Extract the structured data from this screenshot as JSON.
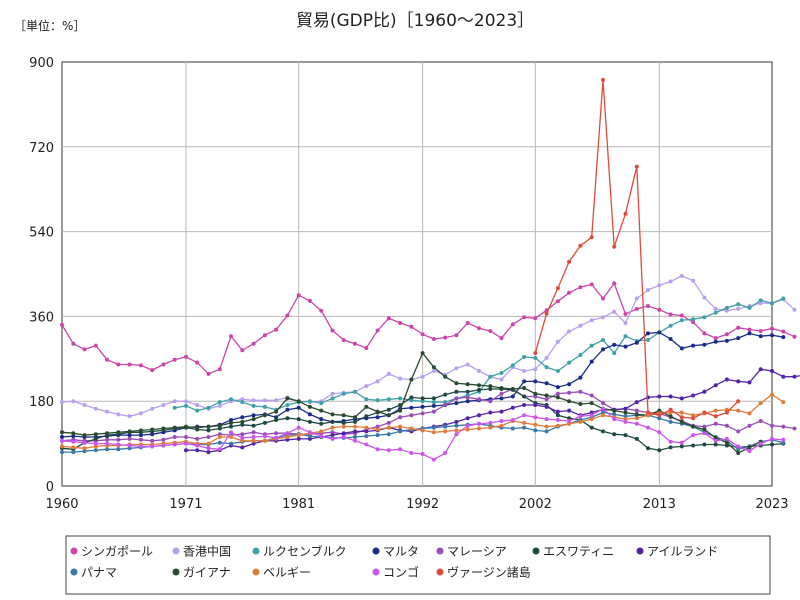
{
  "chart_data": {
    "type": "line",
    "title": "貿易(GDP比)［1960～2023］",
    "unit_label": "［単位：%］",
    "xlabel": "",
    "ylabel": "",
    "xlim": [
      1960,
      2023
    ],
    "ylim": [
      0,
      900
    ],
    "x_ticks": [
      1960,
      1971,
      1981,
      1992,
      2002,
      2013,
      2023
    ],
    "y_ticks": [
      0,
      180,
      360,
      540,
      720,
      900
    ],
    "grid": true,
    "legend_position": "bottom",
    "series": [
      {
        "name": "シンガポール",
        "color": "#cc44aa",
        "start": 1960,
        "values": [
          342,
          302,
          290,
          298,
          268,
          258,
          258,
          256,
          246,
          258,
          268,
          274,
          262,
          238,
          248,
          318,
          288,
          302,
          320,
          332,
          362,
          405,
          393,
          372,
          330,
          310,
          302,
          293,
          330,
          356,
          346,
          338,
          322,
          312,
          315,
          320,
          346,
          335,
          329,
          314,
          343,
          358,
          356,
          373,
          392,
          410,
          422,
          428,
          398,
          430,
          365,
          376,
          382,
          374,
          364,
          362,
          348,
          324,
          314,
          322,
          336,
          332,
          329,
          334,
          328,
          317
        ]
      },
      {
        "name": "香港中国",
        "color": "#b8a0ee",
        "start": 1960,
        "values": [
          178,
          180,
          172,
          164,
          158,
          152,
          148,
          154,
          164,
          172,
          180,
          180,
          172,
          164,
          170,
          180,
          184,
          182,
          182,
          182,
          188,
          180,
          178,
          180,
          196,
          198,
          200,
          212,
          222,
          238,
          228,
          226,
          232,
          244,
          236,
          250,
          258,
          244,
          232,
          226,
          252,
          244,
          248,
          272,
          306,
          328,
          340,
          352,
          358,
          370,
          346,
          398,
          416,
          426,
          434,
          446,
          436,
          400,
          376,
          372,
          376,
          382,
          388,
          388,
          396,
          374
        ]
      },
      {
        "name": "ルクセンブルク",
        "color": "#40a0a8",
        "start": 1970,
        "values": [
          166,
          170,
          160,
          166,
          178,
          184,
          178,
          170,
          168,
          162,
          172,
          178,
          180,
          176,
          186,
          196,
          200,
          184,
          182,
          184,
          186,
          182,
          180,
          178,
          178,
          186,
          192,
          200,
          232,
          240,
          256,
          274,
          272,
          252,
          244,
          262,
          278,
          298,
          310,
          282,
          318,
          308,
          310,
          326,
          340,
          352,
          354,
          358,
          368,
          378,
          386,
          378,
          394,
          388,
          398
        ]
      },
      {
        "name": "マルタ",
        "color": "#1a2b8a",
        "start": 1960,
        "values": [
          104,
          106,
          104,
          104,
          106,
          108,
          108,
          108,
          110,
          114,
          118,
          124,
          126,
          126,
          130,
          140,
          146,
          150,
          152,
          146,
          162,
          166,
          152,
          142,
          136,
          138,
          142,
          144,
          146,
          150,
          164,
          166,
          168,
          170,
          172,
          176,
          180,
          182,
          184,
          186,
          190,
          222,
          222,
          218,
          210,
          216,
          230,
          264,
          290,
          300,
          296,
          304,
          324,
          326,
          312,
          292,
          298,
          300,
          306,
          308,
          314,
          324,
          318,
          320,
          316
        ]
      },
      {
        "name": "マレーシア",
        "color": "#9a4cb8",
        "start": 1960,
        "values": [
          96,
          98,
          96,
          96,
          98,
          98,
          100,
          98,
          96,
          98,
          104,
          104,
          100,
          104,
          110,
          108,
          110,
          114,
          110,
          112,
          112,
          110,
          110,
          112,
          114,
          110,
          112,
          120,
          126,
          134,
          146,
          150,
          154,
          158,
          172,
          186,
          188,
          184,
          180,
          196,
          206,
          190,
          190,
          184,
          196,
          198,
          200,
          192,
          176,
          162,
          164,
          160,
          156,
          154,
          146,
          138,
          128,
          126,
          132,
          128,
          116,
          128,
          138,
          128,
          126,
          122
        ]
      },
      {
        "name": "エスワティニ",
        "color": "#1e4a44",
        "start": 1960,
        "values": [
          80,
          78,
          92,
          100,
          108,
          110,
          114,
          114,
          116,
          118,
          122,
          124,
          120,
          118,
          122,
          126,
          130,
          128,
          134,
          140,
          144,
          142,
          136,
          132,
          136,
          134,
          136,
          148,
          156,
          162,
          172,
          188,
          186,
          186,
          194,
          200,
          200,
          204,
          206,
          206,
          204,
          190,
          176,
          172,
          150,
          144,
          140,
          124,
          116,
          110,
          108,
          100,
          80,
          76,
          82,
          84,
          86,
          88,
          88,
          86,
          82,
          84,
          86,
          88,
          90
        ]
      },
      {
        "name": "アイルランド",
        "color": "#5422a8",
        "start": 1971,
        "values": [
          76,
          76,
          72,
          76,
          86,
          82,
          90,
          96,
          96,
          98,
          100,
          100,
          104,
          108,
          112,
          116,
          116,
          118,
          124,
          118,
          116,
          122,
          126,
          130,
          136,
          144,
          150,
          156,
          158,
          166,
          172,
          172,
          168,
          158,
          160,
          150,
          156,
          162,
          162,
          164,
          178,
          188,
          190,
          190,
          186,
          192,
          200,
          214,
          226,
          222,
          220,
          248,
          244,
          232,
          232,
          236
        ]
      },
      {
        "name": "パナマ",
        "color": "#3a78aa",
        "start": 1960,
        "values": [
          72,
          72,
          74,
          76,
          78,
          78,
          80,
          82,
          84,
          86,
          88,
          90,
          88,
          88,
          92,
          90,
          94,
          96,
          96,
          102,
          108,
          110,
          106,
          104,
          102,
          102,
          104,
          106,
          108,
          110,
          116,
          120,
          122,
          124,
          126,
          128,
          130,
          132,
          128,
          124,
          122,
          124,
          118,
          116,
          126,
          132,
          140,
          146,
          156,
          152,
          148,
          150,
          150,
          144,
          136,
          132,
          126,
          114,
          104,
          96,
          78,
          84,
          94,
          98,
          92
        ]
      },
      {
        "name": "ガイアナ",
        "color": "#2a4a30",
        "start": 1960,
        "values": [
          114,
          112,
          108,
          110,
          112,
          114,
          116,
          118,
          120,
          122,
          124,
          126,
          124,
          126,
          128,
          134,
          136,
          142,
          150,
          158,
          186,
          180,
          168,
          160,
          152,
          150,
          146,
          168,
          158,
          150,
          160,
          226,
          282,
          252,
          232,
          218,
          216,
          214,
          212,
          208,
          206,
          208,
          196,
          192,
          188,
          180,
          174,
          176,
          164,
          160,
          156,
          152,
          150,
          160,
          148,
          136,
          126,
          120,
          102,
          92,
          70,
          82,
          94
        ]
      },
      {
        "name": "ベルギー",
        "color": "#e07c3a",
        "start": 1960,
        "values": [
          84,
          82,
          80,
          84,
          86,
          86,
          88,
          88,
          88,
          90,
          92,
          94,
          90,
          90,
          104,
          104,
          96,
          96,
          96,
          100,
          104,
          108,
          112,
          116,
          124,
          126,
          126,
          124,
          120,
          124,
          126,
          122,
          118,
          114,
          116,
          118,
          120,
          122,
          124,
          128,
          138,
          134,
          130,
          126,
          128,
          132,
          136,
          142,
          150,
          146,
          142,
          144,
          150,
          154,
          156,
          156,
          150,
          154,
          160,
          162,
          160,
          154,
          176,
          194,
          178
        ]
      },
      {
        "name": "コンゴ",
        "color": "#cc55ee",
        "start": 1960,
        "values": [
          96,
          94,
          92,
          90,
          90,
          88,
          86,
          84,
          84,
          86,
          88,
          90,
          86,
          80,
          78,
          114,
          102,
          104,
          106,
          102,
          112,
          124,
          114,
          106,
          100,
          104,
          96,
          88,
          78,
          76,
          78,
          70,
          68,
          56,
          70,
          110,
          128,
          132,
          134,
          138,
          140,
          150,
          146,
          142,
          140,
          138,
          148,
          150,
          164,
          142,
          136,
          132,
          124,
          114,
          94,
          92,
          108,
          112,
          96,
          100,
          84,
          74,
          90,
          100,
          98
        ]
      },
      {
        "name": "ヴァージン諸島",
        "color": "#e04a3a",
        "start": 2002,
        "values": [
          282,
          366,
          420,
          476,
          510,
          528,
          862,
          508,
          578,
          678,
          156,
          150,
          162,
          146,
          144,
          156,
          148,
          156,
          180
        ]
      }
    ]
  }
}
